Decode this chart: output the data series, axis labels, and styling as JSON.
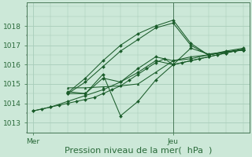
{
  "bg_color": "#cce8d8",
  "grid_color": "#a8ccba",
  "line_color": "#1a5c2a",
  "axis_color": "#2a6a3a",
  "xlabel": "Pression niveau de la mer(  hPa  )",
  "xtick_labels": [
    "Mer",
    "Jeu"
  ],
  "xtick_positions": [
    0,
    48
  ],
  "ylim": [
    1012.5,
    1019.2
  ],
  "yticks": [
    1013,
    1014,
    1015,
    1016,
    1017,
    1018
  ],
  "xlabel_fontsize": 8,
  "tick_fontsize": 6.5,
  "vline_x": 48,
  "lines": [
    {
      "x": [
        0,
        3,
        6,
        9,
        12,
        15,
        18,
        21,
        24,
        27,
        30,
        33,
        36,
        39,
        42,
        45,
        48,
        51,
        54,
        57,
        60,
        63,
        66,
        69,
        72
      ],
      "y": [
        1013.6,
        1013.7,
        1013.8,
        1013.9,
        1014.0,
        1014.1,
        1014.2,
        1014.3,
        1014.5,
        1014.7,
        1014.9,
        1015.2,
        1015.5,
        1015.8,
        1016.1,
        1016.3,
        1016.0,
        1016.1,
        1016.2,
        1016.3,
        1016.4,
        1016.5,
        1016.6,
        1016.7,
        1016.8
      ]
    },
    {
      "x": [
        0,
        6,
        12,
        18,
        24,
        30,
        36,
        42,
        48,
        54,
        60,
        66,
        72
      ],
      "y": [
        1013.6,
        1013.8,
        1014.1,
        1014.4,
        1014.7,
        1015.1,
        1015.6,
        1016.2,
        1016.0,
        1016.2,
        1016.4,
        1016.6,
        1016.8
      ]
    },
    {
      "x": [
        12,
        18,
        24,
        30,
        36,
        42,
        48,
        54,
        60,
        66,
        72
      ],
      "y": [
        1014.5,
        1014.5,
        1015.3,
        1015.1,
        1015.8,
        1016.4,
        1016.2,
        1016.3,
        1016.5,
        1016.7,
        1016.85
      ]
    },
    {
      "x": [
        12,
        18,
        24,
        30,
        36,
        42,
        48,
        54,
        60,
        66,
        72
      ],
      "y": [
        1014.55,
        1015.3,
        1016.2,
        1017.0,
        1017.6,
        1018.0,
        1018.3,
        1017.1,
        1016.5,
        1016.65,
        1016.8
      ]
    },
    {
      "x": [
        12,
        18,
        24,
        30,
        36,
        42,
        48,
        54,
        60,
        66,
        72
      ],
      "y": [
        1014.5,
        1015.1,
        1015.9,
        1016.7,
        1017.3,
        1017.9,
        1018.15,
        1017.0,
        1016.5,
        1016.65,
        1016.75
      ]
    },
    {
      "x": [
        12,
        18,
        24,
        30,
        36,
        42,
        48,
        54,
        60,
        66,
        72
      ],
      "y": [
        1014.6,
        1014.5,
        1015.5,
        1013.35,
        1014.1,
        1015.2,
        1016.0,
        1016.85,
        1016.55,
        1016.65,
        1016.75
      ]
    },
    {
      "x": [
        12,
        18,
        24,
        30,
        36,
        42,
        48,
        54,
        60,
        66,
        72
      ],
      "y": [
        1014.8,
        1014.8,
        1014.85,
        1014.9,
        1015.0,
        1015.6,
        1016.2,
        1016.4,
        1016.5,
        1016.65,
        1016.75
      ]
    }
  ]
}
